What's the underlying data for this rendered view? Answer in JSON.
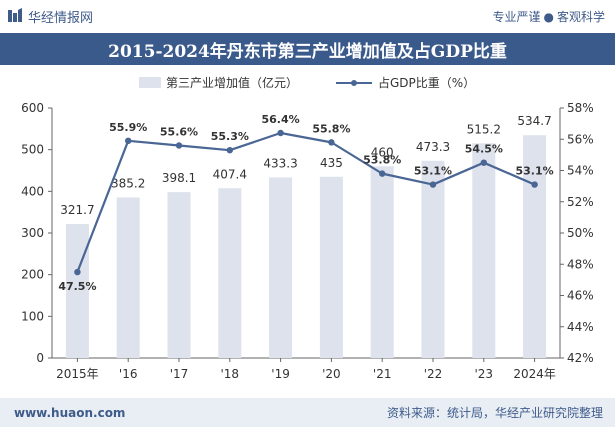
{
  "header": {
    "brand": "华经情报网",
    "slogan_left": "专业严谨",
    "slogan_sep": "●",
    "slogan_right": "客观科学"
  },
  "title": "2015-2024年丹东市第三产业增加值及占GDP比重",
  "footer": {
    "url": "www.huaon.com",
    "source": "资料来源：统计局，华经产业研究院整理"
  },
  "colors": {
    "bar": "#dde2ec",
    "line": "#4a6694",
    "title_bg": "#3b5a8c",
    "footer_bg": "#e9eef5"
  },
  "chart_data": {
    "type": "bar+line",
    "categories": [
      "2015年",
      "'16",
      "'17",
      "'18",
      "'19",
      "'20",
      "'21",
      "'22",
      "'23",
      "2024年"
    ],
    "series": [
      {
        "name": "第三产业增加值（亿元）",
        "type": "bar",
        "axis": "left",
        "values": [
          321.7,
          385.2,
          398.1,
          407.4,
          433.3,
          435,
          460,
          473.3,
          515.2,
          534.7
        ],
        "labels": [
          "321.7",
          "385.2",
          "398.1",
          "407.4",
          "433.3",
          "435",
          "460",
          "473.3",
          "515.2",
          "534.7"
        ]
      },
      {
        "name": "占GDP比重（%）",
        "type": "line",
        "axis": "right",
        "values": [
          47.5,
          55.9,
          55.6,
          55.3,
          56.4,
          55.8,
          53.8,
          53.1,
          54.5,
          53.1
        ],
        "labels": [
          "47.5%",
          "55.9%",
          "55.6%",
          "55.3%",
          "56.4%",
          "55.8%",
          "53.8%",
          "53.1%",
          "54.5%",
          "53.1%"
        ]
      }
    ],
    "y_left": {
      "min": 0,
      "max": 600,
      "ticks": [
        "0",
        "100",
        "200",
        "300",
        "400",
        "500",
        "600"
      ]
    },
    "y_right": {
      "min": 42,
      "max": 58,
      "ticks": [
        "42%",
        "44%",
        "46%",
        "48%",
        "50%",
        "52%",
        "54%",
        "56%",
        "58%"
      ]
    },
    "legend_position": "top-center",
    "grid": false
  }
}
